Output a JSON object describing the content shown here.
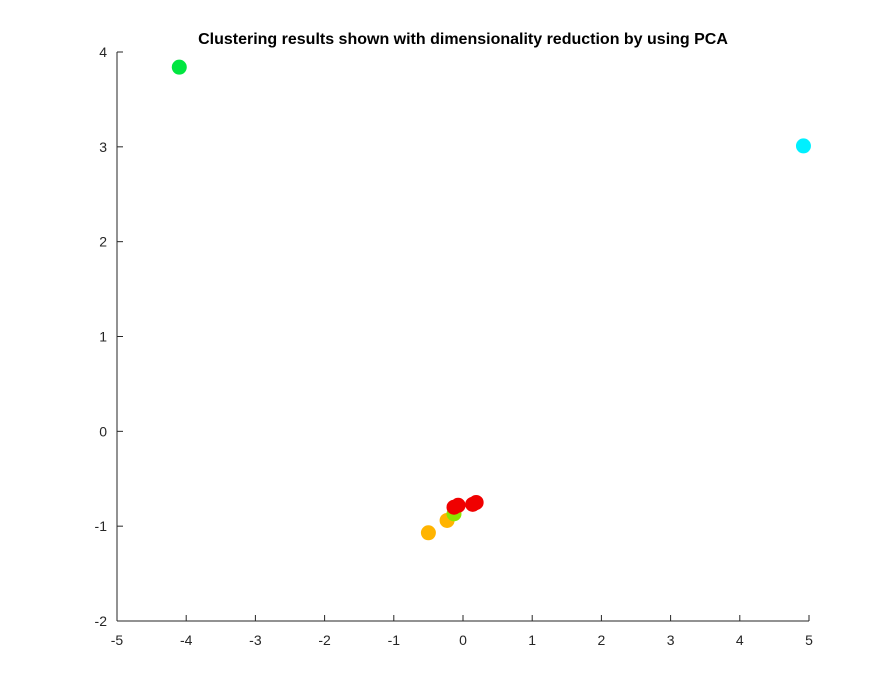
{
  "chart_data": {
    "type": "scatter",
    "title": "Clustering results shown with dimensionality reduction by using PCA",
    "xlabel": "",
    "ylabel": "",
    "xlim": [
      -5,
      5
    ],
    "ylim": [
      -2,
      4
    ],
    "xticks": [
      -5,
      -4,
      -3,
      -2,
      -1,
      0,
      1,
      2,
      3,
      4,
      5
    ],
    "yticks": [
      -2,
      -1,
      0,
      1,
      2,
      3,
      4
    ],
    "xtick_labels": [
      "-5",
      "-4",
      "-3",
      "-2",
      "-1",
      "0",
      "1",
      "2",
      "3",
      "4",
      "5"
    ],
    "ytick_labels": [
      "-2",
      "-1",
      "0",
      "1",
      "2",
      "3",
      "4"
    ],
    "grid": false,
    "legend": false,
    "series": [
      {
        "color": "#00e640",
        "points": [
          {
            "x": -4.1,
            "y": 3.84
          }
        ]
      },
      {
        "color": "#00f0ff",
        "points": [
          {
            "x": 4.92,
            "y": 3.01
          }
        ]
      },
      {
        "color": "#ffb400",
        "points": [
          {
            "x": -0.5,
            "y": -1.07
          },
          {
            "x": -0.23,
            "y": -0.94
          }
        ]
      },
      {
        "color": "#8ce600",
        "points": [
          {
            "x": -0.13,
            "y": -0.87
          }
        ]
      },
      {
        "color": "#f00000",
        "points": [
          {
            "x": -0.13,
            "y": -0.8
          },
          {
            "x": -0.07,
            "y": -0.78
          },
          {
            "x": 0.14,
            "y": -0.77
          },
          {
            "x": 0.19,
            "y": -0.75
          }
        ]
      }
    ]
  }
}
